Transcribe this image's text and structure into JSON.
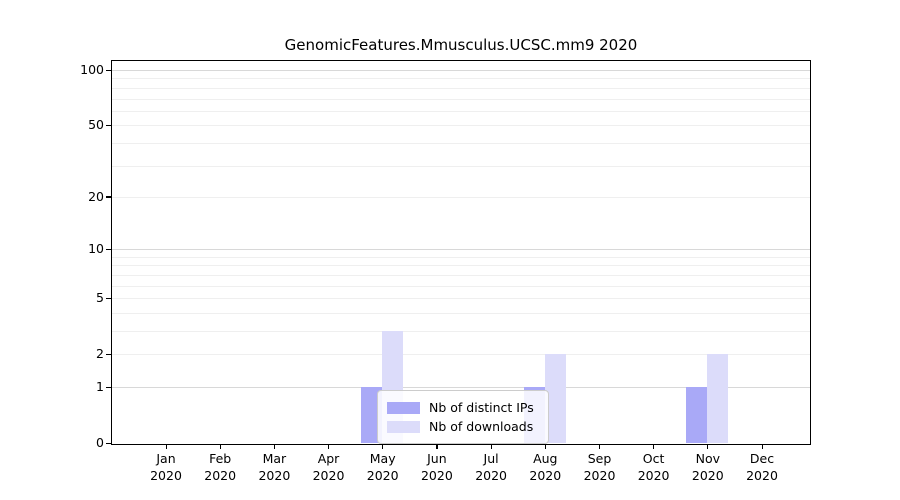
{
  "chart_data": {
    "type": "bar",
    "title": "GenomicFeatures.Mmusculus.UCSC.mm9 2020",
    "categories": [
      "Jan",
      "Feb",
      "Mar",
      "Apr",
      "May",
      "Jun",
      "Jul",
      "Aug",
      "Sep",
      "Oct",
      "Nov",
      "Dec"
    ],
    "year_label": "2020",
    "series": [
      {
        "name": "Nb of distinct IPs",
        "color": "#a9a9f7",
        "values": [
          0,
          0,
          0,
          0,
          1,
          0,
          0,
          1,
          0,
          0,
          1,
          0
        ]
      },
      {
        "name": "Nb of downloads",
        "color": "#dcdcfa",
        "values": [
          0,
          0,
          0,
          0,
          3,
          0,
          0,
          2,
          0,
          0,
          2,
          0
        ]
      }
    ],
    "y_axis": {
      "scale": "log1p",
      "ticks": [
        100,
        50,
        20,
        10,
        5,
        2,
        1,
        0
      ],
      "range": [
        0,
        100
      ],
      "major_gridlines": [
        1,
        10,
        100
      ],
      "minor_gridlines": [
        2,
        3,
        4,
        5,
        6,
        7,
        8,
        9,
        20,
        30,
        40,
        50,
        60,
        70,
        80,
        90
      ]
    },
    "x_axis": {
      "label_line2": "2020"
    },
    "grid": true,
    "legend_position": "lower-center-inside",
    "colors": {
      "frame": "#000000",
      "grid_major": "#d8d8d8",
      "grid_minor": "#efefef",
      "background": "#ffffff"
    }
  }
}
